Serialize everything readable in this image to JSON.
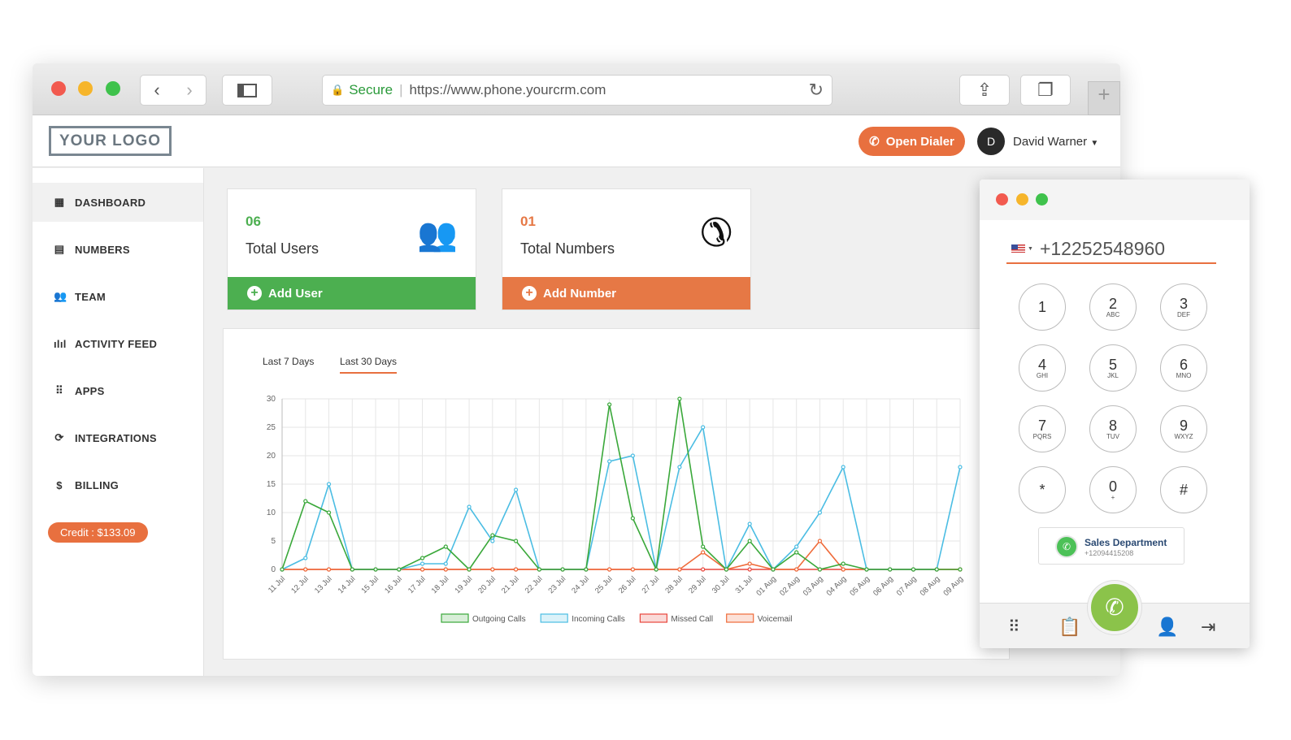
{
  "browser": {
    "secure_label": "Secure",
    "url": "https://www.phone.yourcrm.com"
  },
  "header": {
    "logo": "YOUR LOGO",
    "open_dialer": "Open Dialer",
    "avatar_initial": "D",
    "user_name": "David Warner"
  },
  "sidebar": {
    "items": [
      {
        "label": "DASHBOARD",
        "icon": "dashboard-icon",
        "glyph": "▦"
      },
      {
        "label": "NUMBERS",
        "icon": "numbers-icon",
        "glyph": "▤"
      },
      {
        "label": "TEAM",
        "icon": "team-icon",
        "glyph": "👥"
      },
      {
        "label": "ACTIVITY FEED",
        "icon": "activity-icon",
        "glyph": "ılıl"
      },
      {
        "label": "APPS",
        "icon": "apps-icon",
        "glyph": "⠿"
      },
      {
        "label": "INTEGRATIONS",
        "icon": "sync-icon",
        "glyph": "⟳"
      },
      {
        "label": "BILLING",
        "icon": "dollar-icon",
        "glyph": "$"
      }
    ],
    "credit": "Credit : $133.09"
  },
  "cards": [
    {
      "count": "06",
      "label": "Total Users",
      "action": "Add User",
      "color": "#4caf50",
      "count_color": "#4caf50"
    },
    {
      "count": "01",
      "label": "Total Numbers",
      "action": "Add Number",
      "color": "#e67845",
      "count_color": "#e67845"
    }
  ],
  "tabs": [
    "Last 7 Days",
    "Last 30 Days"
  ],
  "active_tab": "Last 30 Days",
  "chart_data": {
    "type": "line",
    "categories": [
      "11 Jul",
      "12 Jul",
      "13 Jul",
      "14 Jul",
      "15 Jul",
      "16 Jul",
      "17 Jul",
      "18 Jul",
      "19 Jul",
      "20 Jul",
      "21 Jul",
      "22 Jul",
      "23 Jul",
      "24 Jul",
      "25 Jul",
      "26 Jul",
      "27 Jul",
      "28 Jul",
      "29 Jul",
      "30 Jul",
      "31 Jul",
      "01 Aug",
      "02 Aug",
      "03 Aug",
      "04 Aug",
      "05 Aug",
      "06 Aug",
      "07 Aug",
      "08 Aug",
      "09 Aug"
    ],
    "ylim": [
      0,
      30
    ],
    "yticks": [
      0,
      5,
      10,
      15,
      20,
      25,
      30
    ],
    "grid": true,
    "legend": "bottom",
    "series": [
      {
        "name": "Missed Call",
        "color": "#e8463c",
        "values": [
          0,
          0,
          0,
          0,
          0,
          0,
          0,
          0,
          0,
          0,
          0,
          0,
          0,
          0,
          0,
          0,
          0,
          0,
          0,
          0,
          0,
          0,
          0,
          0,
          0,
          0,
          0,
          0,
          0,
          0
        ]
      },
      {
        "name": "Voicemail",
        "color": "#ef6b3a",
        "values": [
          0,
          0,
          0,
          0,
          0,
          0,
          0,
          0,
          0,
          0,
          0,
          0,
          0,
          0,
          0,
          0,
          0,
          0,
          3,
          0,
          1,
          0,
          0,
          5,
          0,
          0,
          0,
          0,
          0,
          0
        ]
      },
      {
        "name": "Incoming Calls",
        "color": "#4bbde3",
        "values": [
          0,
          2,
          15,
          0,
          0,
          0,
          1,
          1,
          11,
          5,
          14,
          0,
          0,
          0,
          19,
          20,
          0,
          18,
          25,
          0,
          8,
          0,
          4,
          10,
          18,
          0,
          0,
          0,
          0,
          18
        ]
      },
      {
        "name": "Outgoing Calls",
        "color": "#3aa83a",
        "values": [
          0,
          12,
          10,
          0,
          0,
          0,
          2,
          4,
          0,
          6,
          5,
          0,
          0,
          0,
          29,
          9,
          0,
          30,
          4,
          0,
          5,
          0,
          3,
          0,
          1,
          0,
          0,
          0,
          0,
          0
        ]
      }
    ],
    "legend_order": [
      "Outgoing Calls",
      "Incoming Calls",
      "Missed Call",
      "Voicemail"
    ]
  },
  "dialer": {
    "phone": "+12252548960",
    "keys": [
      {
        "d": "1",
        "l": ""
      },
      {
        "d": "2",
        "l": "ABC"
      },
      {
        "d": "3",
        "l": "DEF"
      },
      {
        "d": "4",
        "l": "GHI"
      },
      {
        "d": "5",
        "l": "JKL"
      },
      {
        "d": "6",
        "l": "MNO"
      },
      {
        "d": "7",
        "l": "PQRS"
      },
      {
        "d": "8",
        "l": "TUV"
      },
      {
        "d": "9",
        "l": "WXYZ"
      },
      {
        "d": "*",
        "l": ""
      },
      {
        "d": "0",
        "l": "+"
      },
      {
        "d": "#",
        "l": ""
      }
    ],
    "caller_name": "Sales Department",
    "caller_number": "+12094415208"
  }
}
